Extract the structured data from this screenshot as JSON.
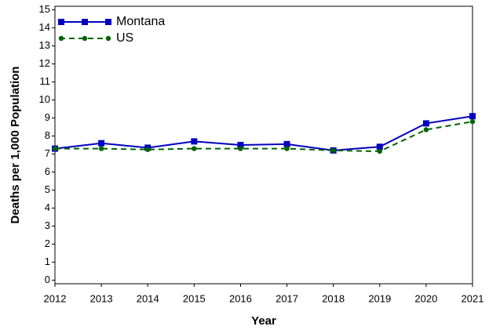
{
  "chart_data": {
    "type": "line",
    "x_label": "Year",
    "y_label": "Deaths per 1,000 Population",
    "x": [
      2012,
      2013,
      2014,
      2015,
      2016,
      2017,
      2018,
      2019,
      2020,
      2021
    ],
    "series": [
      {
        "name": "Montana",
        "color": "#0000c0",
        "dash": false,
        "marker": "square",
        "values": [
          7.3,
          7.6,
          7.35,
          7.7,
          7.5,
          7.55,
          7.2,
          7.4,
          8.7,
          9.1
        ]
      },
      {
        "name": "US",
        "color": "#006400",
        "dash": true,
        "marker": "circle",
        "values": [
          7.3,
          7.3,
          7.25,
          7.3,
          7.3,
          7.3,
          7.2,
          7.15,
          8.35,
          8.8
        ]
      }
    ],
    "xlim": [
      2012,
      2021
    ],
    "xticks": [
      2012,
      2013,
      2014,
      2015,
      2016,
      2017,
      2018,
      2019,
      2020,
      2021
    ],
    "ylim": [
      -0.2,
      15.2
    ],
    "yticks": [
      0,
      1,
      2,
      3,
      4,
      5,
      6,
      7,
      8,
      9,
      10,
      11,
      12,
      13,
      14,
      15
    ],
    "legend": "upper-left"
  }
}
